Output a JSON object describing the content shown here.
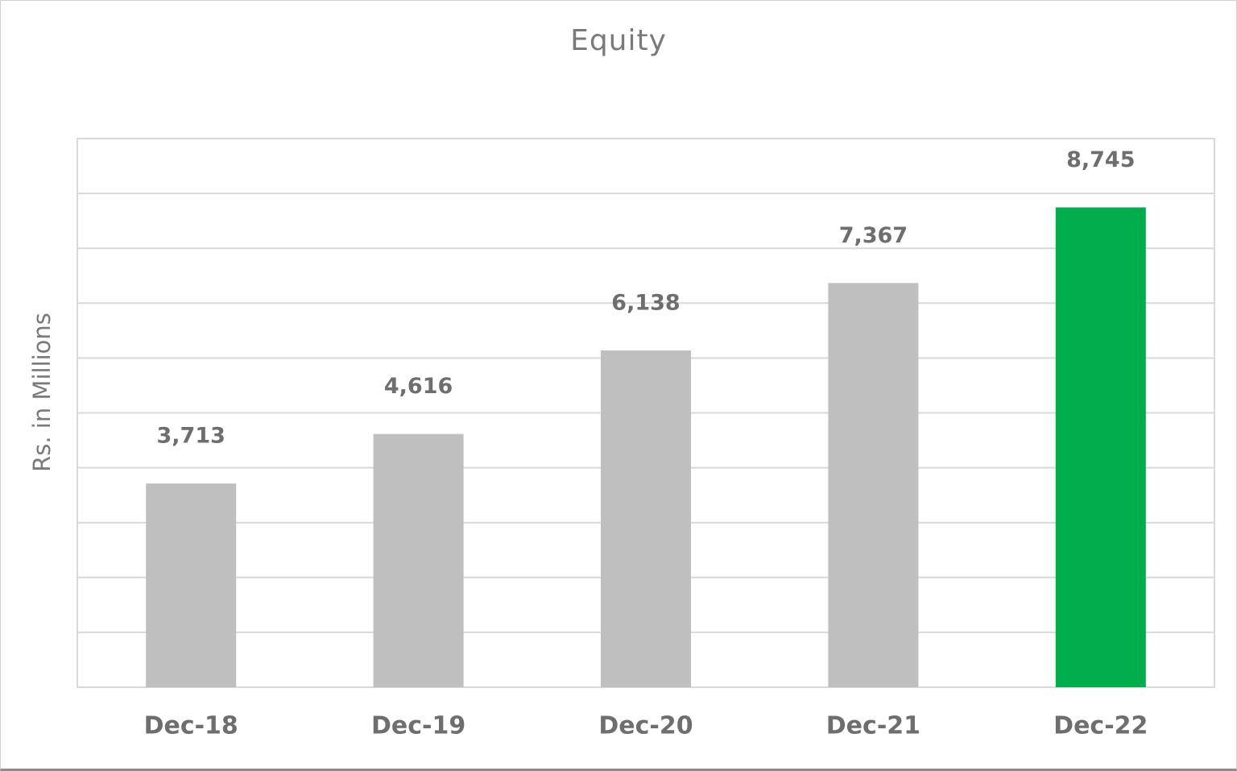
{
  "chart_data": {
    "type": "bar",
    "title": "Equity",
    "xlabel": "",
    "ylabel": "Rs. in Millions",
    "categories": [
      "Dec-18",
      "Dec-19",
      "Dec-20",
      "Dec-21",
      "Dec-22"
    ],
    "values": [
      3713,
      4616,
      6138,
      7367,
      8745
    ],
    "data_labels": [
      "3,713",
      "4,616",
      "6,138",
      "7,367",
      "8,745"
    ],
    "ylim": [
      0,
      10000
    ],
    "grid": true,
    "legend": "none",
    "colors": {
      "default_bar": "#bfbfbf",
      "highlight_bar": "#00ad4c",
      "gridline": "#d9d9d9",
      "text": "#6e6e6e"
    },
    "highlight_index": 4
  }
}
